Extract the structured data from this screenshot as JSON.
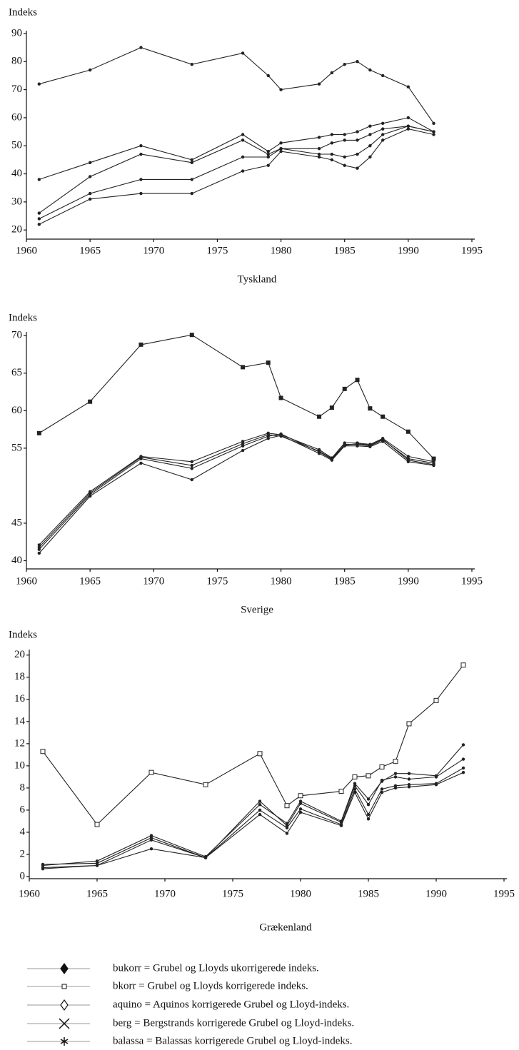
{
  "chart_data": [
    {
      "type": "line",
      "ylabel": "Indeks",
      "xlabel": "Tyskland",
      "x": [
        1961,
        1965,
        1969,
        1973,
        1977,
        1979,
        1980,
        1983,
        1984,
        1985,
        1986,
        1987,
        1988,
        1990,
        1992
      ],
      "xlim": [
        1960,
        1995
      ],
      "xticks": [
        1960,
        1965,
        1970,
        1975,
        1980,
        1985,
        1990,
        1995
      ],
      "ylim": [
        17,
        91
      ],
      "yticks": [
        20,
        30,
        40,
        50,
        60,
        70,
        80,
        90
      ],
      "series": [
        {
          "color": "#222",
          "marker": "dot",
          "values": [
            72,
            77,
            85,
            79,
            83,
            75,
            70,
            72,
            76,
            79,
            80,
            77,
            75,
            71,
            58
          ]
        },
        {
          "color": "#222",
          "marker": "dot",
          "values": [
            38,
            44,
            50,
            45,
            54,
            48,
            51,
            53,
            54,
            54,
            55,
            57,
            58,
            60,
            55
          ]
        },
        {
          "color": "#222",
          "marker": "dot",
          "values": [
            26,
            39,
            47,
            44,
            52,
            47,
            49,
            49,
            51,
            52,
            52,
            54,
            56,
            57,
            55
          ]
        },
        {
          "color": "#222",
          "marker": "dot",
          "values": [
            24,
            33,
            38,
            38,
            46,
            46,
            49,
            47,
            47,
            46,
            47,
            50,
            54,
            57,
            55
          ]
        },
        {
          "color": "#222",
          "marker": "dot",
          "values": [
            22,
            31,
            33,
            33,
            41,
            43,
            48,
            46,
            45,
            43,
            42,
            46,
            52,
            56,
            54
          ]
        }
      ]
    },
    {
      "type": "line",
      "ylabel": "Indeks",
      "xlabel": "Sverige",
      "x": [
        1961,
        1965,
        1969,
        1973,
        1977,
        1979,
        1980,
        1983,
        1984,
        1985,
        1986,
        1987,
        1988,
        1990,
        1992
      ],
      "xlim": [
        1960,
        1995
      ],
      "xticks": [
        1960,
        1965,
        1970,
        1975,
        1980,
        1985,
        1990,
        1995
      ],
      "ylim": [
        39,
        70.5
      ],
      "yticks": [
        40,
        45,
        55,
        60,
        65,
        70
      ],
      "series": [
        {
          "color": "#222",
          "marker": "square",
          "values": [
            57.0,
            61.2,
            68.8,
            70.1,
            65.8,
            66.4,
            61.7,
            59.2,
            60.4,
            62.9,
            64.1,
            60.3,
            59.2,
            57.2,
            53.6
          ]
        },
        {
          "color": "#222",
          "marker": "dot",
          "values": [
            42.1,
            49.2,
            53.9,
            53.2,
            55.9,
            57.0,
            56.8,
            54.8,
            53.7,
            55.7,
            55.7,
            55.5,
            56.3,
            53.9,
            53.2
          ]
        },
        {
          "color": "#222",
          "marker": "dot",
          "values": [
            41.8,
            49.0,
            53.8,
            52.7,
            55.6,
            56.8,
            56.6,
            54.6,
            53.6,
            55.5,
            55.5,
            55.3,
            56.1,
            53.6,
            53.0
          ]
        },
        {
          "color": "#222",
          "marker": "dot",
          "values": [
            41.5,
            48.8,
            53.6,
            52.3,
            55.3,
            56.6,
            56.9,
            54.5,
            53.5,
            55.4,
            55.6,
            55.4,
            56.2,
            53.4,
            52.8
          ]
        },
        {
          "color": "#222",
          "marker": "dot",
          "values": [
            41.0,
            48.6,
            53.0,
            50.8,
            54.7,
            56.3,
            56.7,
            54.3,
            53.4,
            55.3,
            55.3,
            55.2,
            55.9,
            53.2,
            52.7
          ]
        }
      ]
    },
    {
      "type": "line",
      "ylabel": "Indeks",
      "xlabel": "Grækenland",
      "x": [
        1961,
        1965,
        1969,
        1973,
        1977,
        1979,
        1980,
        1983,
        1984,
        1985,
        1986,
        1987,
        1988,
        1990,
        1992
      ],
      "xlim": [
        1960,
        1995
      ],
      "xticks": [
        1960,
        1965,
        1970,
        1975,
        1980,
        1985,
        1990,
        1995
      ],
      "ylim": [
        0,
        20.5
      ],
      "yticks": [
        0,
        2,
        4,
        6,
        8,
        10,
        12,
        14,
        16,
        18,
        20
      ],
      "series": [
        {
          "color": "#222",
          "marker": "square-open",
          "values": [
            11.3,
            4.7,
            9.4,
            8.3,
            11.1,
            6.4,
            7.3,
            7.7,
            9.0,
            9.1,
            9.9,
            10.4,
            13.8,
            15.9,
            19.1
          ]
        },
        {
          "color": "#222",
          "marker": "dot",
          "values": [
            1.0,
            1.4,
            3.7,
            1.8,
            6.5,
            4.8,
            6.8,
            5.0,
            8.4,
            7.0,
            8.6,
            9.3,
            9.3,
            9.1,
            11.9
          ]
        },
        {
          "color": "#222",
          "marker": "dot",
          "values": [
            1.1,
            1.2,
            3.5,
            1.7,
            6.8,
            4.6,
            6.6,
            4.9,
            8.2,
            6.5,
            8.7,
            9.0,
            8.8,
            9.0,
            10.6
          ]
        },
        {
          "color": "#222",
          "marker": "dot",
          "values": [
            0.8,
            1.0,
            3.3,
            1.7,
            6.0,
            4.4,
            6.1,
            4.7,
            7.9,
            5.6,
            7.9,
            8.2,
            8.3,
            8.4,
            9.8
          ]
        },
        {
          "color": "#222",
          "marker": "dot",
          "values": [
            0.7,
            1.0,
            2.5,
            1.7,
            5.6,
            3.9,
            5.8,
            4.6,
            7.6,
            5.2,
            7.6,
            8.0,
            8.1,
            8.3,
            9.4
          ]
        }
      ]
    }
  ],
  "legend": {
    "entries": [
      {
        "marker": "diamond",
        "label": "bukorr  = Grubel og Lloyds ukorrigerede indeks."
      },
      {
        "marker": "square-open",
        "label": "bkorr  = Grubel og Lloyds korrigerede indeks."
      },
      {
        "marker": "diamond-open",
        "label": "aquino = Aquinos korrigerede Grubel og Lloyd-indeks."
      },
      {
        "marker": "x",
        "label": "berg  = Bergstrands korrigerede Grubel og Lloyd-indeks."
      },
      {
        "marker": "asterisk",
        "label": "balassa  = Balassas korrigerede Grubel og Lloyd-indeks."
      }
    ]
  }
}
